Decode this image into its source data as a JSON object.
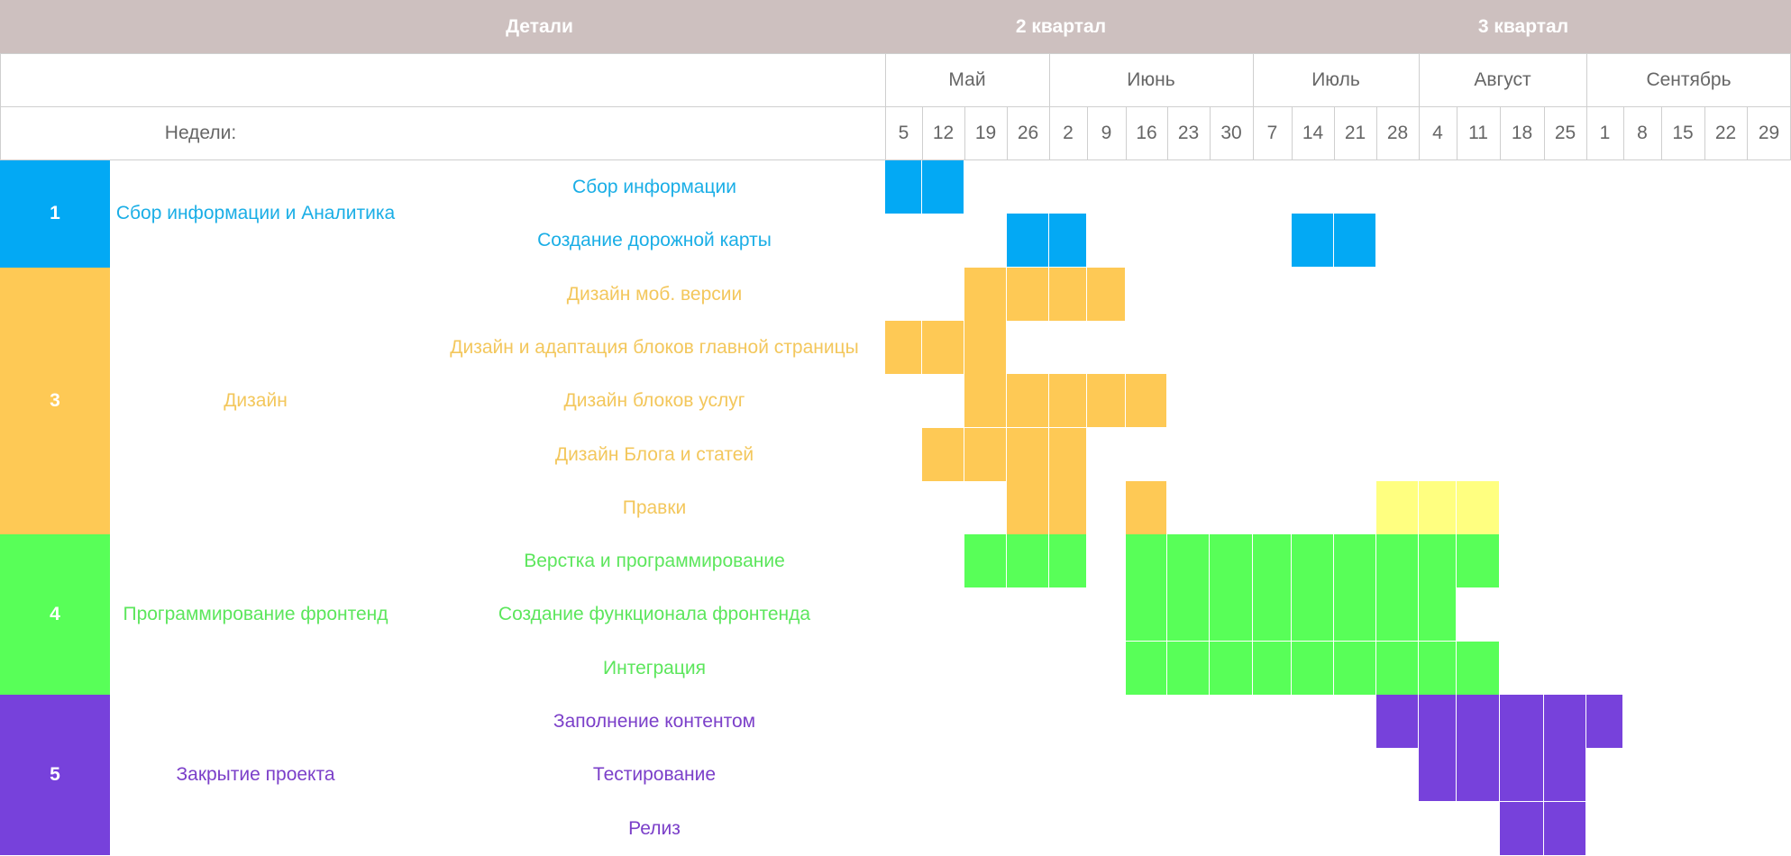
{
  "chart_data": {
    "type": "gantt",
    "header": {
      "details": "Детали",
      "quarters": [
        "2 квартал",
        "3 квартал"
      ]
    },
    "months": [
      {
        "name": "Май",
        "weeks": 4
      },
      {
        "name": "Июнь",
        "weeks": 5
      },
      {
        "name": "Июль",
        "weeks": 4
      },
      {
        "name": "Август",
        "weeks": 4
      },
      {
        "name": "Сентябрь",
        "weeks": 5
      }
    ],
    "weeks_label": "Недели:",
    "weeks": [
      "5",
      "12",
      "19",
      "26",
      "2",
      "9",
      "16",
      "23",
      "30",
      "7",
      "14",
      "21",
      "28",
      "4",
      "11",
      "18",
      "25",
      "1",
      "8",
      "15",
      "22",
      "29"
    ],
    "phases": [
      {
        "number": "1",
        "name": "Сбор информации и Аналитика",
        "color": "#03a9f4",
        "text_color": "#1aaee6",
        "tasks": [
          {
            "name": "Сбор информации",
            "cells": [
              0,
              1
            ]
          },
          {
            "name": "Создание дорожной карты",
            "cells": [
              3,
              4,
              10,
              11
            ]
          }
        ]
      },
      {
        "number": "3",
        "name": "Дизайн",
        "color": "#fec955",
        "text_color": "#f3c75c",
        "tasks": [
          {
            "name": "Дизайн моб. версии",
            "cells": [
              2,
              3,
              4,
              5
            ]
          },
          {
            "name": "Дизайн и адаптация блоков главной страницы",
            "cells": [
              0,
              1,
              2
            ]
          },
          {
            "name": "Дизайн блоков услуг",
            "cells": [
              2,
              3,
              4,
              5,
              6
            ]
          },
          {
            "name": "Дизайн Блога и статей",
            "cells": [
              1,
              2,
              3,
              4
            ]
          },
          {
            "name": "Правки",
            "cells": [
              3,
              4,
              6
            ],
            "cells_alt": [
              12,
              13,
              14
            ],
            "alt_color": "#ffff80"
          }
        ]
      },
      {
        "number": "4",
        "name": "Программирование фронтенд",
        "color": "#58ff58",
        "text_color": "#5ce65c",
        "tasks": [
          {
            "name": "Верстка и программирование",
            "cells": [
              2,
              3,
              4,
              6,
              7,
              8,
              9,
              10,
              11,
              12,
              13,
              14
            ]
          },
          {
            "name": "Создание функционала фронтенда",
            "cells": [
              6,
              7,
              8,
              9,
              10,
              11,
              12,
              13
            ]
          },
          {
            "name": "Интеграция",
            "cells": [
              6,
              7,
              8,
              9,
              10,
              11,
              12,
              13,
              14
            ]
          }
        ]
      },
      {
        "number": "5",
        "name": "Закрытие проекта",
        "color": "#7741db",
        "text_color": "#7b3fc9",
        "tasks": [
          {
            "name": "Заполнение контентом",
            "cells": [
              12,
              13,
              14,
              15,
              16,
              17
            ]
          },
          {
            "name": "Тестирование",
            "cells": [
              13,
              14,
              15,
              16
            ]
          },
          {
            "name": "Релиз",
            "cells": [
              15,
              16
            ]
          }
        ]
      }
    ]
  }
}
